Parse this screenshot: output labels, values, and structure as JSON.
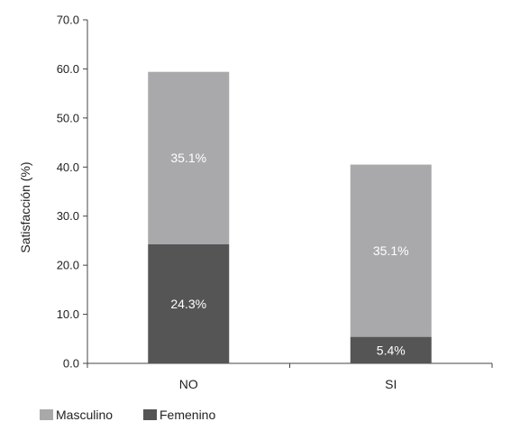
{
  "chart_data": {
    "type": "bar",
    "stacked": true,
    "categories": [
      "NO",
      "SI"
    ],
    "series": [
      {
        "name": "Femenino",
        "values": [
          24.3,
          5.4
        ],
        "labels": [
          "24.3%",
          "5.4%"
        ],
        "color": "#555555"
      },
      {
        "name": "Masculino",
        "values": [
          35.1,
          35.1
        ],
        "labels": [
          "35.1%",
          "35.1%"
        ],
        "color": "#a9a9ab"
      }
    ],
    "ylabel": "Satisfacción (%)",
    "xlabel": "",
    "ylim": [
      0,
      70
    ],
    "yticks": [
      "0.0",
      "10.0",
      "20.0",
      "30.0",
      "40.0",
      "50.0",
      "60.0",
      "70.0"
    ],
    "grid": false,
    "legend": {
      "placement": "bottom-left",
      "entries": [
        {
          "label": "Masculino",
          "color": "#a9a9ab"
        },
        {
          "label": "Femenino",
          "color": "#555555"
        }
      ]
    }
  }
}
